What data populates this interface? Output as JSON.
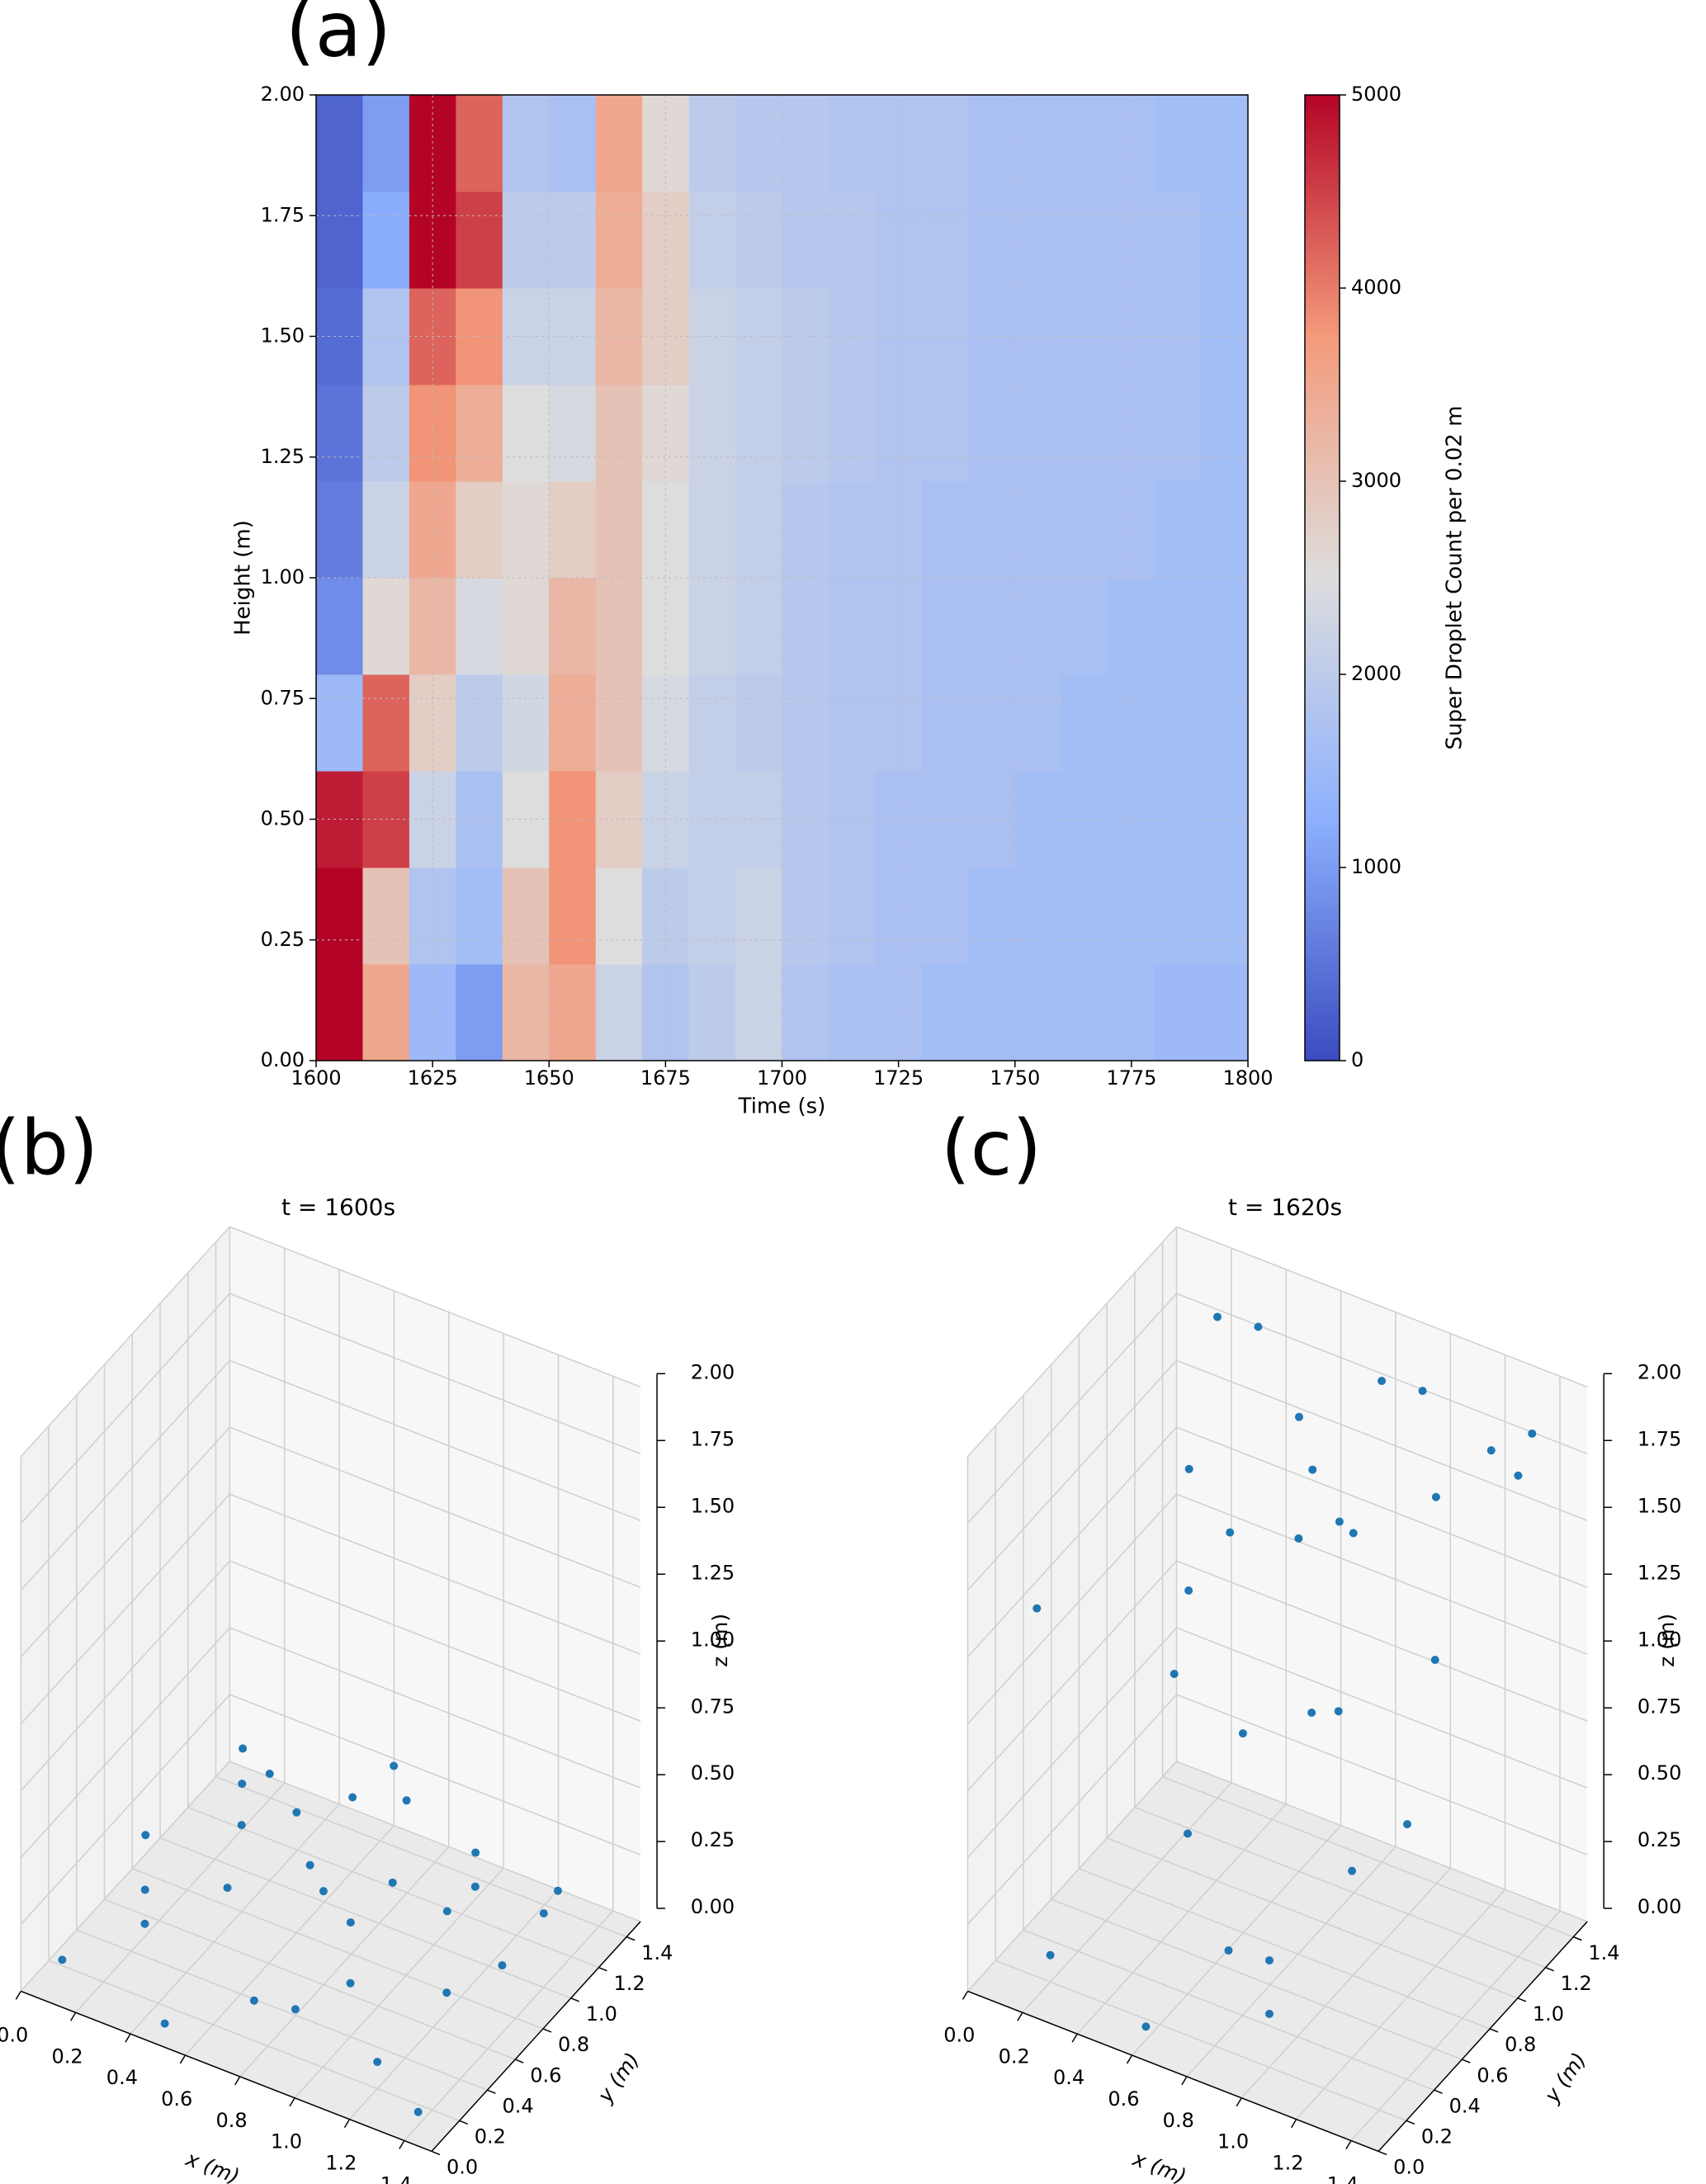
{
  "chart_data": [
    {
      "type": "heatmap",
      "panel": "(a)",
      "xlabel": "Time (s)",
      "ylabel": "Height (m)",
      "colorbar_label": "Super Droplet Count per 0.02 m",
      "x": [
        1600,
        1610,
        1620,
        1630,
        1640,
        1650,
        1660,
        1670,
        1680,
        1690,
        1700,
        1710,
        1720,
        1730,
        1740,
        1750,
        1760,
        1770,
        1780,
        1790,
        1800
      ],
      "y": [
        0,
        0.2,
        0.4,
        0.6,
        0.8,
        1.0,
        1.2,
        1.4,
        1.6,
        1.8,
        2.0
      ],
      "z": [
        [
          5000,
          3500,
          1500,
          1000,
          3200,
          3500,
          2200,
          1800,
          2000,
          2200,
          1800,
          1700,
          1700,
          1600,
          1600,
          1600,
          1600,
          1600,
          1500,
          1500
        ],
        [
          5000,
          3000,
          1800,
          1600,
          3000,
          3800,
          2500,
          2000,
          2100,
          2200,
          1900,
          1800,
          1700,
          1700,
          1600,
          1600,
          1600,
          1600,
          1600,
          1600
        ],
        [
          4800,
          4500,
          2200,
          1700,
          2500,
          3800,
          2800,
          2200,
          2100,
          2100,
          1900,
          1800,
          1700,
          1700,
          1700,
          1600,
          1600,
          1600,
          1600,
          1600
        ],
        [
          1500,
          4200,
          2800,
          2000,
          2300,
          3400,
          3000,
          2400,
          2100,
          2000,
          1900,
          1800,
          1800,
          1700,
          1700,
          1700,
          1600,
          1600,
          1600,
          1600
        ],
        [
          800,
          2600,
          3200,
          2400,
          2600,
          3200,
          3000,
          2500,
          2200,
          2100,
          1900,
          1800,
          1800,
          1700,
          1700,
          1700,
          1700,
          1600,
          1600,
          1600
        ],
        [
          600,
          2200,
          3500,
          2800,
          2600,
          2800,
          3000,
          2500,
          2200,
          2100,
          1900,
          1800,
          1800,
          1700,
          1700,
          1700,
          1700,
          1700,
          1600,
          1600
        ],
        [
          500,
          2000,
          3800,
          3400,
          2500,
          2400,
          3000,
          2600,
          2200,
          2100,
          2000,
          1900,
          1800,
          1800,
          1700,
          1700,
          1700,
          1700,
          1700,
          1600
        ],
        [
          400,
          1800,
          4200,
          3800,
          2200,
          2200,
          3200,
          2800,
          2200,
          2100,
          2000,
          1900,
          1800,
          1800,
          1700,
          1700,
          1700,
          1700,
          1700,
          1600
        ],
        [
          300,
          1200,
          5000,
          4500,
          2000,
          2000,
          3400,
          2800,
          2100,
          2000,
          1900,
          1900,
          1800,
          1800,
          1700,
          1700,
          1700,
          1700,
          1700,
          1600
        ],
        [
          300,
          1000,
          5000,
          4200,
          1800,
          1700,
          3500,
          2600,
          2000,
          1900,
          1900,
          1800,
          1800,
          1800,
          1700,
          1700,
          1700,
          1700,
          1600,
          1600
        ]
      ],
      "xlim": [
        1600,
        1800
      ],
      "xticks": [
        1600,
        1625,
        1650,
        1675,
        1700,
        1725,
        1750,
        1775,
        1800
      ],
      "ylim": [
        0,
        2
      ],
      "yticks": [
        {
          "value": 0,
          "label": "0.00"
        },
        0.25,
        {
          "value": 0.5,
          "label": "0.50"
        },
        0.75,
        {
          "value": 1,
          "label": "1.00"
        },
        1.25,
        {
          "value": 1.5,
          "label": "1.50"
        },
        1.75,
        {
          "value": 2,
          "label": "2.00"
        }
      ],
      "clim": [
        0,
        5000
      ],
      "cticks": [
        0,
        1000,
        2000,
        3000,
        4000,
        5000
      ],
      "colormap": [
        "#3b4cc0",
        "#8db0fe",
        "#dddddd",
        "#f49a7b",
        "#b40426"
      ],
      "grid": true
    },
    {
      "type": "scatter3d",
      "panel": "(b)",
      "title": "t = 1600s",
      "xlabel": "x (m)",
      "ylabel": "y (m)",
      "zlabel": "z (m)",
      "color": "#1f77b4",
      "x": [
        0.1,
        0.3,
        0.5,
        0.7,
        0.9,
        1.1,
        1.3,
        0.2,
        0.4,
        0.6,
        0.8,
        1.0,
        1.2,
        1.4,
        0.15,
        0.35,
        0.55,
        0.75,
        0.95,
        1.15,
        1.35,
        0.25,
        0.45,
        0.65,
        0.85,
        1.05,
        1.25,
        0.5,
        0.9,
        1.3
      ],
      "y": [
        0.1,
        0.3,
        0.5,
        0.7,
        0.9,
        1.1,
        1.3,
        1.2,
        1.0,
        0.8,
        0.6,
        0.4,
        0.2,
        0.1,
        0.6,
        0.9,
        1.3,
        0.2,
        0.5,
        0.8,
        1.1,
        0.4,
        0.7,
        1.4,
        0.3,
        1.2,
        0.6,
        0.05,
        1.0,
        0.9
      ],
      "z": [
        0.1,
        0.2,
        0.3,
        0.35,
        0.25,
        0.2,
        0.15,
        0.3,
        0.4,
        0.45,
        0.35,
        0.2,
        0.1,
        0.05,
        0.3,
        0.4,
        0.2,
        0.15,
        0.35,
        0.3,
        0.2,
        0.25,
        0.4,
        0.3,
        0.1,
        0.25,
        0.15,
        0.05,
        0.5,
        0.1
      ],
      "xlim": [
        0,
        1.5
      ],
      "ylim": [
        0,
        1.5
      ],
      "zlim": [
        0,
        2
      ],
      "xticks": [
        {
          "value": 0,
          "label": "0.0"
        },
        0.2,
        0.4,
        0.6,
        0.8,
        {
          "value": 1,
          "label": "1.0"
        },
        1.2,
        1.4
      ],
      "yticks": [
        {
          "value": 0,
          "label": "0.0"
        },
        0.2,
        0.4,
        0.6,
        0.8,
        {
          "value": 1,
          "label": "1.0"
        },
        1.2,
        1.4
      ],
      "zticks": [
        {
          "value": 0,
          "label": "0.00"
        },
        0.25,
        {
          "value": 0.5,
          "label": "0.50"
        },
        0.75,
        {
          "value": 1,
          "label": "1.00"
        },
        1.25,
        {
          "value": 1.5,
          "label": "1.50"
        },
        1.75,
        {
          "value": 2,
          "label": "2.00"
        }
      ]
    },
    {
      "type": "scatter3d",
      "panel": "(c)",
      "title": "t = 1620s",
      "xlabel": "x (m)",
      "ylabel": "y (m)",
      "zlabel": "z (m)",
      "color": "#1f77b4",
      "x": [
        0.2,
        0.4,
        0.6,
        0.8,
        1.0,
        1.2,
        1.4,
        0.3,
        0.5,
        0.7,
        0.9,
        1.1,
        1.3,
        0.1,
        0.5,
        0.7,
        0.9,
        1.1,
        0.6,
        0.8,
        1.0,
        0.4,
        1.2,
        0.7,
        0.9,
        1.3,
        0.2,
        0.6,
        1.0,
        1.4
      ],
      "y": [
        1.4,
        1.3,
        1.2,
        1.4,
        1.3,
        1.4,
        1.2,
        1.0,
        0.9,
        1.1,
        1.0,
        1.2,
        0.8,
        0.3,
        0.5,
        0.6,
        0.7,
        0.5,
        0.4,
        0.3,
        0.2,
        0.8,
        0.4,
        1.0,
        0.9,
        0.6,
        0.2,
        0.1,
        0.2,
        1.3
      ],
      "z": [
        1.8,
        1.9,
        1.7,
        1.8,
        1.9,
        1.7,
        1.8,
        1.5,
        1.4,
        1.6,
        1.5,
        1.6,
        1.3,
        1.3,
        1.1,
        0.9,
        1.0,
        1.2,
        0.6,
        0.3,
        0.2,
        1.2,
        0.7,
        1.4,
        1.6,
        0.8,
        0.1,
        0.05,
        0.4,
        1.9
      ],
      "xlim": [
        0,
        1.5
      ],
      "ylim": [
        0,
        1.5
      ],
      "zlim": [
        0,
        2
      ],
      "xticks": [
        {
          "value": 0,
          "label": "0.0"
        },
        0.2,
        0.4,
        0.6,
        0.8,
        {
          "value": 1,
          "label": "1.0"
        },
        1.2,
        1.4
      ],
      "yticks": [
        {
          "value": 0,
          "label": "0.0"
        },
        0.2,
        0.4,
        0.6,
        0.8,
        {
          "value": 1,
          "label": "1.0"
        },
        1.2,
        1.4
      ],
      "zticks": [
        {
          "value": 0,
          "label": "0.00"
        },
        0.25,
        {
          "value": 0.5,
          "label": "0.50"
        },
        0.75,
        {
          "value": 1,
          "label": "1.00"
        },
        1.25,
        {
          "value": 1.5,
          "label": "1.50"
        },
        1.75,
        {
          "value": 2,
          "label": "2.00"
        }
      ]
    }
  ]
}
